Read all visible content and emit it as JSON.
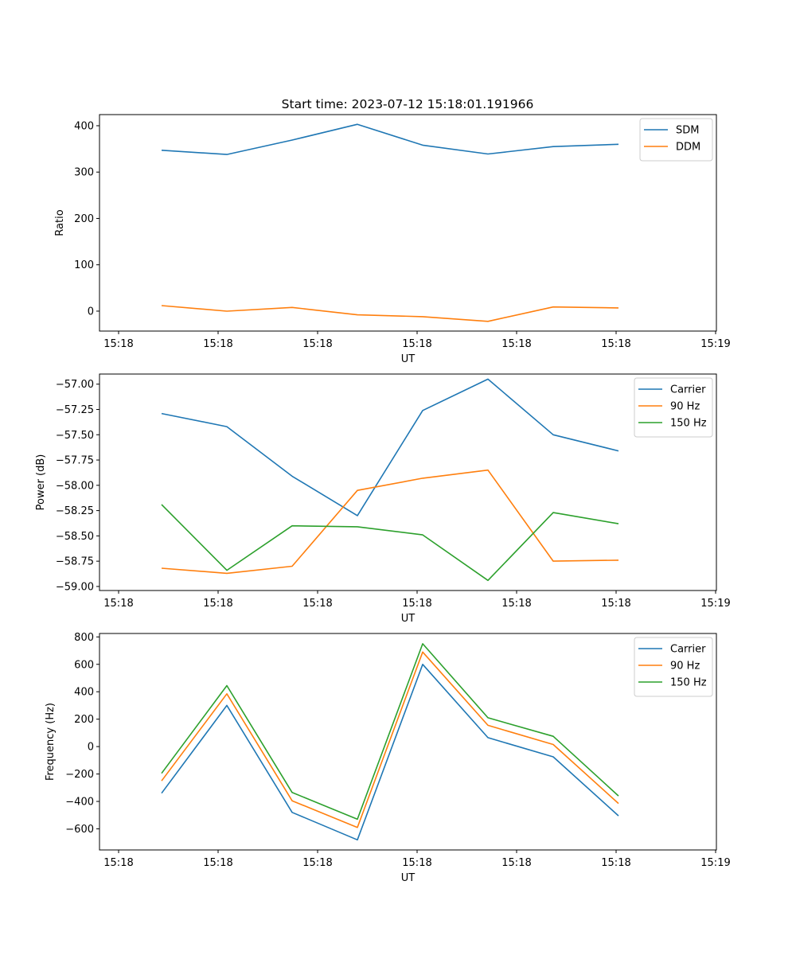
{
  "figure": {
    "title": "Start time: 2023-07-12 15:18:01.191966"
  },
  "chart_data": [
    {
      "type": "line",
      "xlabel": "UT",
      "ylabel": "Ratio",
      "x_tick_labels": [
        "15:18",
        "15:18",
        "15:18",
        "15:18",
        "15:18",
        "15:18",
        "15:19"
      ],
      "ylim": [
        -43,
        424
      ],
      "yticks": [
        0,
        100,
        200,
        300,
        400
      ],
      "ytick_labels": [
        "0",
        "100",
        "200",
        "300",
        "400"
      ],
      "legend_position": "top-right",
      "series": [
        {
          "name": "SDM",
          "color": "#1f77b4",
          "values": [
            347,
            338,
            369,
            403,
            358,
            339,
            355,
            360
          ]
        },
        {
          "name": "DDM",
          "color": "#ff7f0e",
          "values": [
            12,
            0,
            8,
            -8,
            -12,
            -22,
            9,
            7
          ]
        }
      ]
    },
    {
      "type": "line",
      "xlabel": "UT",
      "ylabel": "Power (dB)",
      "x_tick_labels": [
        "15:18",
        "15:18",
        "15:18",
        "15:18",
        "15:18",
        "15:18",
        "15:19"
      ],
      "ylim": [
        -59.04,
        -56.9
      ],
      "yticks": [
        -59.0,
        -58.75,
        -58.5,
        -58.25,
        -58.0,
        -57.75,
        -57.5,
        -57.25,
        -57.0
      ],
      "ytick_labels": [
        "−59.00",
        "−58.75",
        "−58.50",
        "−58.25",
        "−58.00",
        "−57.75",
        "−57.50",
        "−57.25",
        "−57.00"
      ],
      "legend_position": "top-right",
      "series": [
        {
          "name": "Carrier",
          "color": "#1f77b4",
          "values": [
            -57.29,
            -57.42,
            -57.91,
            -58.3,
            -57.26,
            -56.95,
            -57.5,
            -57.66
          ]
        },
        {
          "name": "90 Hz",
          "color": "#ff7f0e",
          "values": [
            -58.82,
            -58.87,
            -58.8,
            -58.05,
            -57.93,
            -57.85,
            -58.75,
            -58.74
          ]
        },
        {
          "name": "150 Hz",
          "color": "#2ca02c",
          "values": [
            -58.19,
            -58.84,
            -58.4,
            -58.41,
            -58.49,
            -58.94,
            -58.27,
            -58.38
          ]
        }
      ]
    },
    {
      "type": "line",
      "xlabel": "UT",
      "ylabel": "Frequency (Hz)",
      "x_tick_labels": [
        "15:18",
        "15:18",
        "15:18",
        "15:18",
        "15:18",
        "15:18",
        "15:19"
      ],
      "ylim": [
        -754,
        825
      ],
      "yticks": [
        -600,
        -400,
        -200,
        0,
        200,
        400,
        600,
        800
      ],
      "ytick_labels": [
        "−600",
        "−400",
        "−200",
        "0",
        "200",
        "400",
        "600",
        "800"
      ],
      "legend_position": "top-right",
      "series": [
        {
          "name": "Carrier",
          "color": "#1f77b4",
          "values": [
            -340,
            300,
            -480,
            -680,
            600,
            65,
            -75,
            -505
          ]
        },
        {
          "name": "90 Hz",
          "color": "#ff7f0e",
          "values": [
            -250,
            385,
            -395,
            -590,
            690,
            155,
            15,
            -415
          ]
        },
        {
          "name": "150 Hz",
          "color": "#2ca02c",
          "values": [
            -195,
            445,
            -335,
            -530,
            750,
            210,
            75,
            -360
          ]
        }
      ]
    }
  ]
}
